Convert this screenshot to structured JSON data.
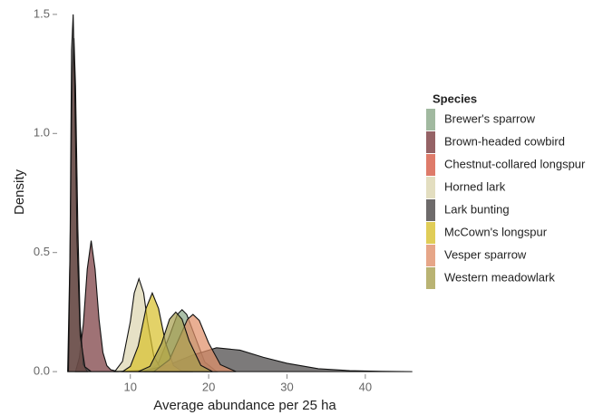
{
  "chart_data": {
    "type": "density",
    "x_label": "Average abundance per 25 ha",
    "y_label": "Density",
    "legend_title": "Species",
    "xlim": [
      1,
      48
    ],
    "ylim": [
      -0.03,
      1.53
    ],
    "xticks": [
      10,
      20,
      30,
      40
    ],
    "yticks": [
      {
        "value": 0,
        "label": "0.0"
      },
      {
        "value": 0.5,
        "label": "0.5"
      },
      {
        "value": 1,
        "label": "1.0"
      },
      {
        "value": 1.5,
        "label": "1.5"
      }
    ],
    "series": [
      {
        "name": "Brewer's sparrow",
        "color": "#8aa888",
        "x": [
          12,
          13.5,
          15,
          16,
          16.6,
          17.2,
          18,
          19.5,
          21
        ],
        "values": [
          0,
          0.03,
          0.15,
          0.24,
          0.26,
          0.24,
          0.17,
          0.04,
          0
        ]
      },
      {
        "name": "Brown-headed cowbird",
        "color": "#7a3c40",
        "x": [
          3,
          3.5,
          4,
          4.5,
          5,
          5.5,
          6,
          6.5,
          7,
          7.5,
          8.5
        ],
        "values": [
          0,
          0.06,
          0.2,
          0.43,
          0.55,
          0.43,
          0.22,
          0.08,
          0.025,
          0.008,
          0
        ]
      },
      {
        "name": "Chestnut-collared longspur",
        "color": "#d65a45",
        "x": [
          2,
          2.3,
          2.6,
          2.8,
          3.0,
          3.3,
          3.6,
          4.0,
          4.5
        ],
        "values": [
          0,
          0.5,
          1.25,
          1.4,
          1.2,
          0.6,
          0.2,
          0.03,
          0
        ]
      },
      {
        "name": "Horned lark",
        "color": "#dcd6b0",
        "x": [
          8,
          9,
          10,
          10.5,
          11.1,
          11.7,
          12.2,
          13,
          14,
          15
        ],
        "values": [
          0,
          0.043,
          0.21,
          0.33,
          0.39,
          0.33,
          0.21,
          0.064,
          0.006,
          0
        ]
      },
      {
        "name": "Lark bunting",
        "color": "#4a4646",
        "x": [
          2.1,
          2.3,
          2.5,
          2.7,
          2.9,
          3.2,
          3.6,
          4.2,
          5,
          8,
          12,
          15,
          18,
          21,
          24,
          27,
          30,
          34,
          38,
          42,
          46
        ],
        "values": [
          0,
          0.5,
          1.35,
          1.5,
          1.2,
          0.55,
          0.15,
          0.02,
          0,
          0,
          0.005,
          0.03,
          0.07,
          0.1,
          0.09,
          0.06,
          0.035,
          0.012,
          0.004,
          0.001,
          0
        ]
      },
      {
        "name": "McCown's longspur",
        "color": "#d8c02e",
        "x": [
          9,
          10,
          11,
          12,
          12.8,
          13.6,
          14.5,
          15.5,
          16.5,
          18
        ],
        "values": [
          0,
          0.022,
          0.107,
          0.265,
          0.33,
          0.265,
          0.12,
          0.026,
          0.003,
          0
        ]
      },
      {
        "name": "Vesper sparrow",
        "color": "#e0906a",
        "x": [
          13,
          15,
          16.5,
          17.3,
          18,
          18.8,
          20,
          21.5,
          23.5
        ],
        "values": [
          0,
          0.05,
          0.16,
          0.22,
          0.24,
          0.215,
          0.12,
          0.029,
          0
        ]
      },
      {
        "name": "Western meadowlark",
        "color": "#a8a050",
        "x": [
          11,
          12.5,
          14,
          15,
          15.8,
          16.6,
          17.5,
          19,
          20.5
        ],
        "values": [
          0,
          0.022,
          0.12,
          0.22,
          0.25,
          0.22,
          0.13,
          0.026,
          0
        ]
      }
    ]
  }
}
